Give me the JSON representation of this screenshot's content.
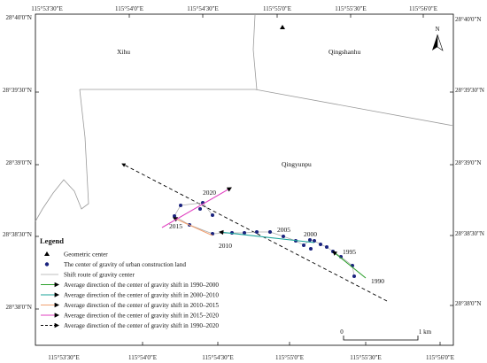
{
  "lon_labels": [
    "115°53'30\"E",
    "115°54'0\"E",
    "115°54'30\"E",
    "115°55'0\"E",
    "115°55'30\"E",
    "115°56'0\"E"
  ],
  "lat_labels": [
    "28°40'0\"N",
    "28°39'30\"N",
    "28°39'0\"N",
    "28°38'30\"N",
    "28°38'0\"N"
  ],
  "districts": {
    "west": "Xihu",
    "east": "Qingshanhu",
    "south": "Qingyunpu"
  },
  "years": {
    "y1990": "1990",
    "y1995": "1995",
    "y2000": "2000",
    "y2005": "2005",
    "y2010": "2010",
    "y2015": "2015",
    "y2020": "2020"
  },
  "north_label": "N",
  "scale": {
    "zero": "0",
    "end": "1 km"
  },
  "legend": {
    "title": "Legend",
    "items": [
      {
        "label": "Geometric center",
        "symbol": "triangle",
        "color": "#000000"
      },
      {
        "label": "The center of gravity of urban construction land",
        "symbol": "dot",
        "color": "#1a237e"
      },
      {
        "label": "Shift route of gravity center",
        "symbol": "line",
        "color": "#aaaaaa"
      },
      {
        "label": "Average direction of the center of gravity shift in 1990–2000",
        "symbol": "arrow",
        "color": "#2ca02c"
      },
      {
        "label": "Average direction of the center of gravity shift in 2000–2010",
        "symbol": "arrow",
        "color": "#1aa39a"
      },
      {
        "label": "Average direction of the center of gravity shift in 2010–2015",
        "symbol": "arrow",
        "color": "#f0a070"
      },
      {
        "label": "Average direction of the center of gravity shift in 2015–2020",
        "symbol": "arrow",
        "color": "#e040c0"
      },
      {
        "label": "Average direction of the center of gravity shift in 1990–2020",
        "symbol": "dashed-arrow",
        "color": "#000000"
      }
    ]
  }
}
